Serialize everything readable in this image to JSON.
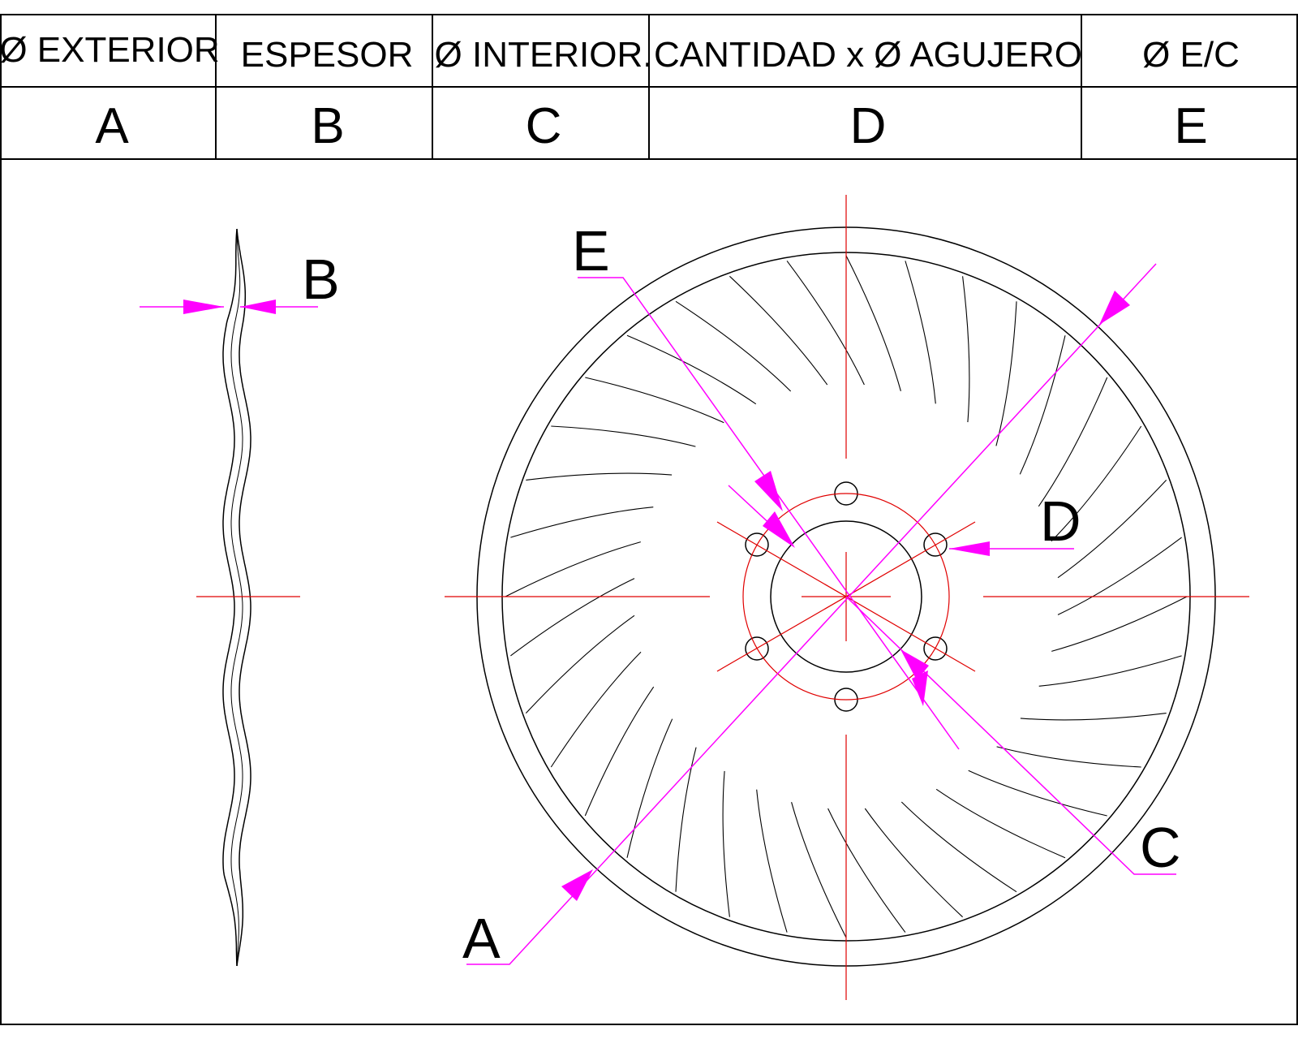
{
  "table": {
    "headers": [
      "Ø EXTERIOR",
      "ESPESOR",
      "Ø INTERIOR.",
      "CANTIDAD x Ø AGUJERO",
      "Ø E/C"
    ],
    "letters": [
      "A",
      "B",
      "C",
      "D",
      "E"
    ]
  },
  "callouts": {
    "a": "A",
    "b": "B",
    "c": "C",
    "d": "D",
    "e": "E"
  },
  "colors": {
    "outline": "#000000",
    "centerline": "#e00000",
    "dimension": "#ff00ff"
  }
}
